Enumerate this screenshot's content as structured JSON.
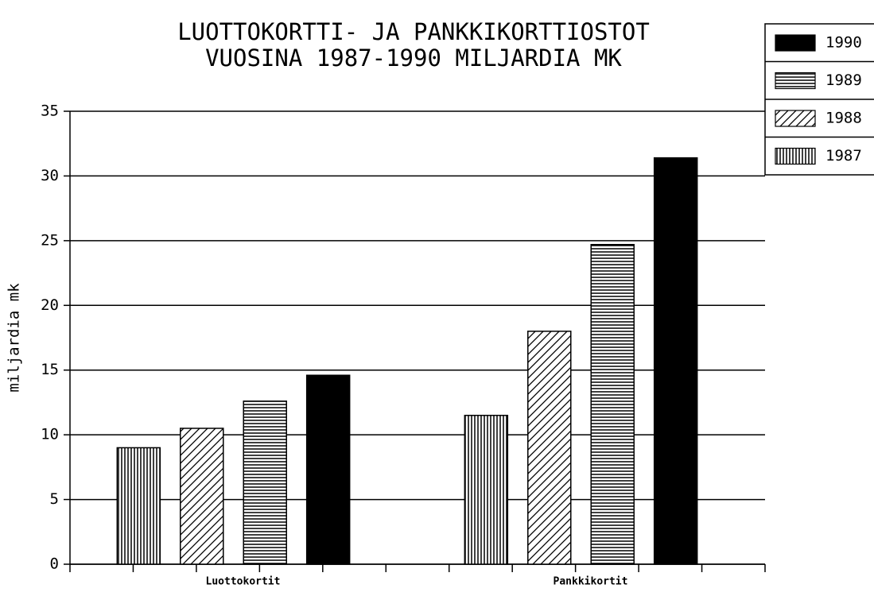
{
  "chart_data": {
    "type": "bar",
    "title": [
      "LUOTTOKORTTI- JA PANKKIKORTTIOSTOT",
      "VUOSINA 1987-1990 MILJARDIA MK"
    ],
    "ylabel": "miljardia mk",
    "categories": [
      "Luottokortit",
      "Pankkikortit"
    ],
    "series": [
      {
        "name": "1987",
        "color": "#000000",
        "pattern": "vertical",
        "values": [
          9,
          11.5
        ]
      },
      {
        "name": "1988",
        "color": "#000000",
        "pattern": "diagonal",
        "values": [
          10.5,
          18
        ]
      },
      {
        "name": "1989",
        "color": "#000000",
        "pattern": "horizontal",
        "values": [
          12.6,
          24.7
        ]
      },
      {
        "name": "1990",
        "color": "#000000",
        "pattern": "solid",
        "values": [
          14.6,
          31.4
        ]
      }
    ],
    "ylim": [
      0,
      35
    ],
    "yticks": [
      0,
      5,
      10,
      15,
      20,
      25,
      30,
      35
    ],
    "grid": true,
    "legend": "upper right"
  }
}
